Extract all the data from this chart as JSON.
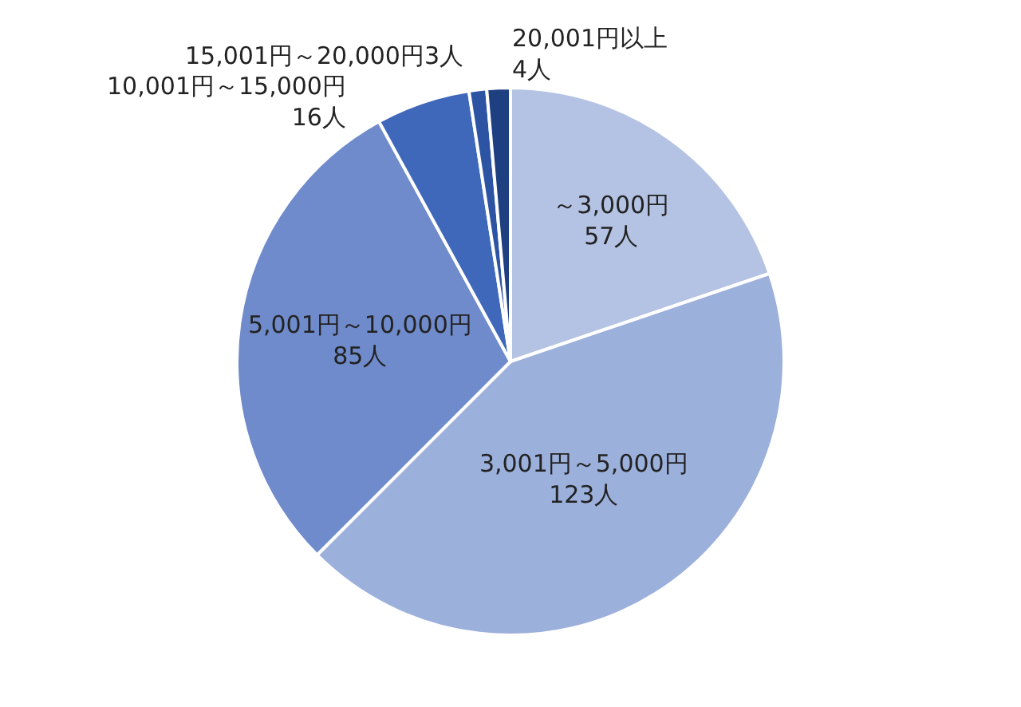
{
  "chart_data": {
    "type": "pie",
    "categories": [
      "～3,000円",
      "3,001円～5,000円",
      "5,001円～10,000円",
      "10,001円～15,000円",
      "15,001円～20,000円",
      "20,001円以上"
    ],
    "values": [
      57,
      123,
      85,
      16,
      3,
      4
    ],
    "value_labels": [
      "57人",
      "123人",
      "85人",
      "16人",
      "3人",
      "4人"
    ],
    "colors": [
      "#b4c3e3",
      "#9cb0dc",
      "#6f8bcb",
      "#3f68ba",
      "#2d54a3",
      "#1e3f80"
    ],
    "legend": false
  }
}
